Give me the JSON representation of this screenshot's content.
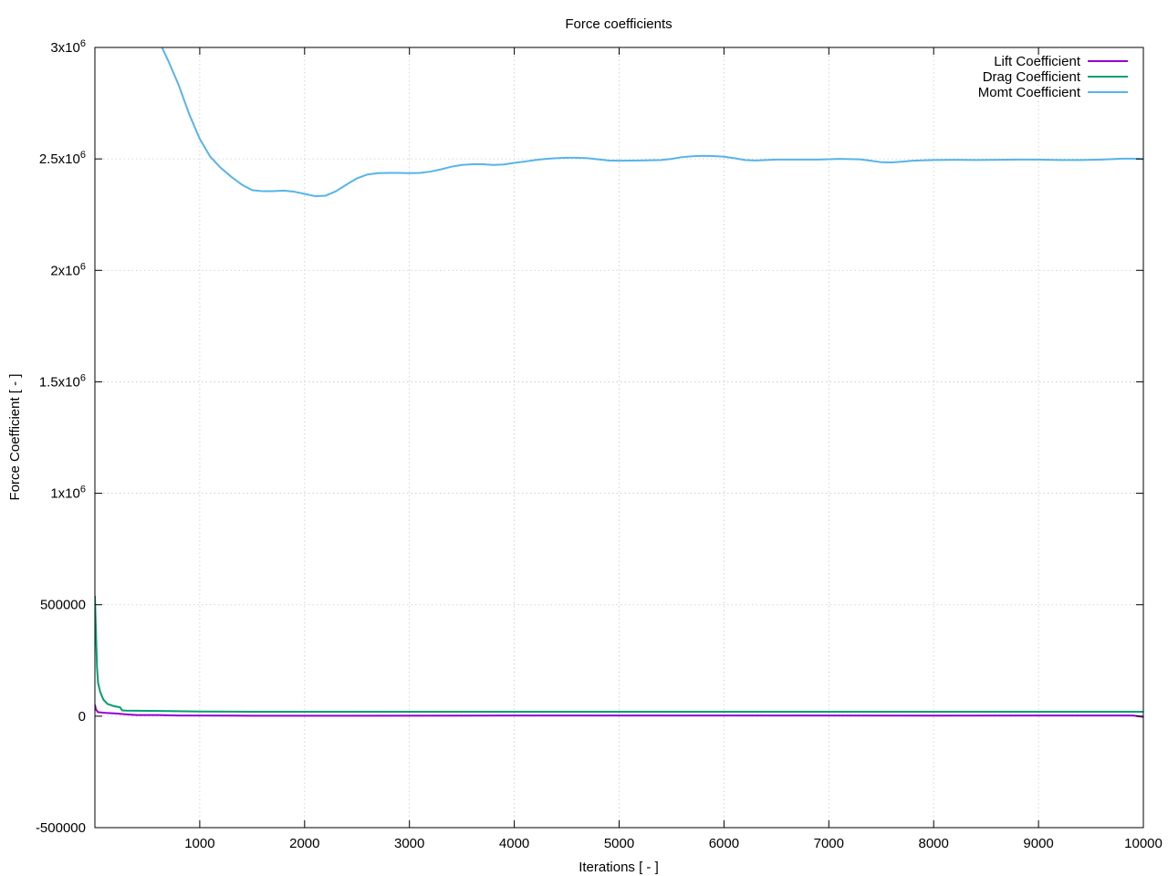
{
  "chart_data": {
    "type": "line",
    "title": "Force coefficients",
    "xlabel": "Iterations [ - ]",
    "ylabel": "Force Coefficient [ - ]",
    "xlim": [
      0,
      10000
    ],
    "ylim": [
      -500000,
      3000000
    ],
    "grid": true,
    "legend_position": "top-right",
    "x_ticks": [
      {
        "value": 1000,
        "label": "1000"
      },
      {
        "value": 2000,
        "label": "2000"
      },
      {
        "value": 3000,
        "label": "3000"
      },
      {
        "value": 4000,
        "label": "4000"
      },
      {
        "value": 5000,
        "label": "5000"
      },
      {
        "value": 6000,
        "label": "6000"
      },
      {
        "value": 7000,
        "label": "7000"
      },
      {
        "value": 8000,
        "label": "8000"
      },
      {
        "value": 9000,
        "label": "9000"
      },
      {
        "value": 10000,
        "label": "10000"
      }
    ],
    "y_ticks": [
      {
        "value": -500000,
        "base": "-500000",
        "exp": ""
      },
      {
        "value": 0,
        "base": "0",
        "exp": ""
      },
      {
        "value": 500000,
        "base": "500000",
        "exp": ""
      },
      {
        "value": 1000000,
        "base": "1x10",
        "exp": "6"
      },
      {
        "value": 1500000,
        "base": "1.5x10",
        "exp": "6"
      },
      {
        "value": 2000000,
        "base": "2x10",
        "exp": "6"
      },
      {
        "value": 2500000,
        "base": "2.5x10",
        "exp": "6"
      },
      {
        "value": 3000000,
        "base": "3x10",
        "exp": "6"
      }
    ],
    "series": [
      {
        "name": "Lift Coefficient",
        "color": "#9400d3",
        "points": [
          [
            0,
            52000
          ],
          [
            10,
            30000
          ],
          [
            30,
            18000
          ],
          [
            100,
            15000
          ],
          [
            200,
            12000
          ],
          [
            300,
            8000
          ],
          [
            400,
            5000
          ],
          [
            600,
            5000
          ],
          [
            800,
            3000
          ],
          [
            1500,
            2000
          ],
          [
            2500,
            2000
          ],
          [
            4000,
            3000
          ],
          [
            6000,
            3000
          ],
          [
            8000,
            2500
          ],
          [
            9900,
            3000
          ],
          [
            10000,
            -3000
          ]
        ]
      },
      {
        "name": "Drag Coefficient",
        "color": "#009e73",
        "points": [
          [
            0,
            540000
          ],
          [
            10,
            380000
          ],
          [
            20,
            220000
          ],
          [
            30,
            150000
          ],
          [
            50,
            110000
          ],
          [
            80,
            75000
          ],
          [
            120,
            55000
          ],
          [
            180,
            45000
          ],
          [
            240,
            40000
          ],
          [
            260,
            26000
          ],
          [
            300,
            25000
          ],
          [
            500,
            24000
          ],
          [
            700,
            23000
          ],
          [
            1000,
            21000
          ],
          [
            1500,
            20000
          ],
          [
            3000,
            20000
          ],
          [
            5000,
            20000
          ],
          [
            7000,
            20000
          ],
          [
            10000,
            20000
          ]
        ]
      },
      {
        "name": "Momt Coefficient",
        "color": "#56b4e9",
        "points": [
          [
            640,
            3000000
          ],
          [
            700,
            2940000
          ],
          [
            800,
            2830000
          ],
          [
            900,
            2700000
          ],
          [
            1000,
            2590000
          ],
          [
            1100,
            2510000
          ],
          [
            1200,
            2460000
          ],
          [
            1300,
            2420000
          ],
          [
            1400,
            2385000
          ],
          [
            1500,
            2360000
          ],
          [
            1600,
            2355000
          ],
          [
            1700,
            2355000
          ],
          [
            1800,
            2358000
          ],
          [
            1900,
            2353000
          ],
          [
            2000,
            2343000
          ],
          [
            2100,
            2333000
          ],
          [
            2200,
            2335000
          ],
          [
            2300,
            2355000
          ],
          [
            2400,
            2385000
          ],
          [
            2500,
            2413000
          ],
          [
            2600,
            2430000
          ],
          [
            2700,
            2436000
          ],
          [
            2800,
            2437000
          ],
          [
            2900,
            2437000
          ],
          [
            3000,
            2436000
          ],
          [
            3100,
            2437000
          ],
          [
            3200,
            2443000
          ],
          [
            3300,
            2453000
          ],
          [
            3400,
            2465000
          ],
          [
            3500,
            2473000
          ],
          [
            3600,
            2476000
          ],
          [
            3700,
            2476000
          ],
          [
            3800,
            2473000
          ],
          [
            3900,
            2475000
          ],
          [
            4000,
            2482000
          ],
          [
            4100,
            2488000
          ],
          [
            4200,
            2495000
          ],
          [
            4300,
            2500000
          ],
          [
            4400,
            2503000
          ],
          [
            4500,
            2505000
          ],
          [
            4600,
            2505000
          ],
          [
            4700,
            2503000
          ],
          [
            4800,
            2498000
          ],
          [
            4900,
            2493000
          ],
          [
            5000,
            2492000
          ],
          [
            5200,
            2493000
          ],
          [
            5400,
            2495000
          ],
          [
            5500,
            2500000
          ],
          [
            5600,
            2508000
          ],
          [
            5700,
            2512000
          ],
          [
            5800,
            2514000
          ],
          [
            5900,
            2513000
          ],
          [
            6000,
            2510000
          ],
          [
            6100,
            2503000
          ],
          [
            6200,
            2495000
          ],
          [
            6300,
            2493000
          ],
          [
            6400,
            2495000
          ],
          [
            6500,
            2497000
          ],
          [
            6700,
            2497000
          ],
          [
            6900,
            2497000
          ],
          [
            7100,
            2500000
          ],
          [
            7300,
            2498000
          ],
          [
            7400,
            2492000
          ],
          [
            7500,
            2485000
          ],
          [
            7600,
            2484000
          ],
          [
            7700,
            2488000
          ],
          [
            7800,
            2492000
          ],
          [
            8000,
            2495000
          ],
          [
            8200,
            2496000
          ],
          [
            8400,
            2495000
          ],
          [
            8600,
            2496000
          ],
          [
            8800,
            2497000
          ],
          [
            9000,
            2497000
          ],
          [
            9200,
            2495000
          ],
          [
            9400,
            2495000
          ],
          [
            9600,
            2497000
          ],
          [
            9700,
            2499000
          ],
          [
            9800,
            2501000
          ],
          [
            9900,
            2501000
          ],
          [
            10000,
            2499000
          ]
        ]
      }
    ]
  }
}
